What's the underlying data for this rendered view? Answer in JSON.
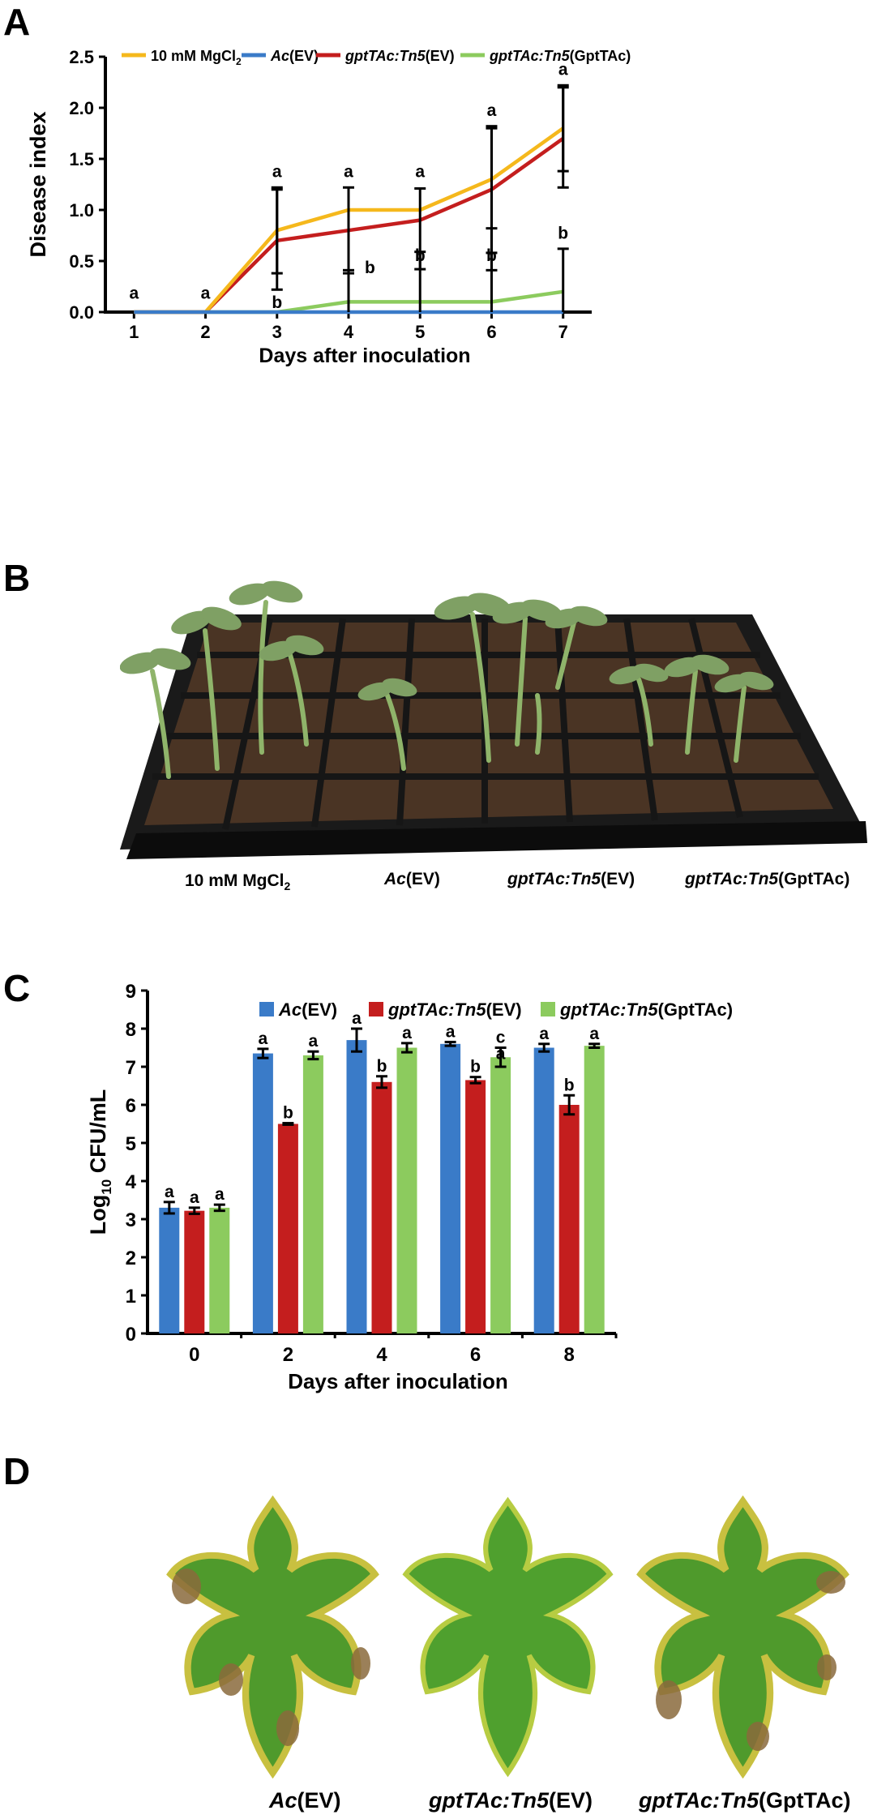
{
  "panels": {
    "a": "A",
    "b": "B",
    "c": "C",
    "d": "D"
  },
  "colors": {
    "mgcl2": "#F5B81C",
    "ac_ev": "#3A7BC8",
    "tn5_ev": "#C41E1E",
    "tn5_gpt": "#8CCB5E"
  },
  "chart_data": [
    {
      "type": "line",
      "xlabel": "Days after inoculation",
      "ylabel": "Disease index",
      "x": [
        1,
        2,
        3,
        4,
        5,
        6,
        7
      ],
      "xlim": [
        0.6,
        7.4
      ],
      "ylim": [
        0,
        2.5
      ],
      "yticks": [
        0.0,
        0.5,
        1.0,
        1.5,
        2.0,
        2.5
      ],
      "ytick_labels": [
        "0.0",
        "0.5",
        "1.0",
        "1.5",
        "2.0",
        "2.5"
      ],
      "legend_position": "top",
      "series": [
        {
          "name": "10 mM MgCl2",
          "label_main": "10 mM MgCl",
          "label_sub": "2",
          "label_italic": "",
          "label_plain": "",
          "color": "#F5B81C",
          "values": [
            0,
            0,
            0.8,
            1.0,
            1.0,
            1.3,
            1.8
          ]
        },
        {
          "name": "Ac(EV)",
          "label_main": "",
          "label_sub": "",
          "label_italic": "Ac",
          "label_plain": "(EV)",
          "color": "#3A7BC8",
          "values": [
            0,
            0,
            0,
            0,
            0,
            0,
            0
          ]
        },
        {
          "name": "gptTAc:Tn5(EV)",
          "label_main": "",
          "label_sub": "",
          "label_italic": "gptTAc:Tn5",
          "label_plain": "(EV)",
          "color": "#C41E1E",
          "values": [
            0,
            0,
            0.7,
            0.8,
            0.9,
            1.2,
            1.7
          ]
        },
        {
          "name": "gptTAc:Tn5(GptTAc)",
          "label_main": "",
          "label_sub": "",
          "label_italic": "gptTAc:Tn5",
          "label_plain": "(GptTAc)",
          "color": "#8CCB5E",
          "values": [
            0,
            0,
            0,
            0.1,
            0.1,
            0.1,
            0.2
          ]
        }
      ],
      "error_bars": [
        {
          "x": 3,
          "high": 1.22,
          "low": 0.22
        },
        {
          "x": 3,
          "high": 1.2,
          "low": 0.38
        },
        {
          "x": 4,
          "high": 1.22,
          "low": 0.38
        },
        {
          "x": 4,
          "high": 0.41,
          "low": 0.0
        },
        {
          "x": 5,
          "high": 1.21,
          "low": 0.42
        },
        {
          "x": 5,
          "high": 0.59,
          "low": 0.0
        },
        {
          "x": 6,
          "high": 1.82,
          "low": 0.41
        },
        {
          "x": 6,
          "high": 1.8,
          "low": 0.58
        },
        {
          "x": 6,
          "high": 0.82,
          "low": 0.0
        },
        {
          "x": 7,
          "high": 2.22,
          "low": 1.22
        },
        {
          "x": 7,
          "high": 2.2,
          "low": 1.38
        },
        {
          "x": 7,
          "high": 0.62,
          "low": 0.0
        }
      ],
      "annotations": [
        {
          "x": 1,
          "y": 0.13,
          "text": "a"
        },
        {
          "x": 2,
          "y": 0.13,
          "text": "a"
        },
        {
          "x": 3,
          "y": 1.32,
          "text": "a"
        },
        {
          "x": 3,
          "y": 0.04,
          "text": "b"
        },
        {
          "x": 4,
          "y": 1.32,
          "text": "a"
        },
        {
          "x": 4.3,
          "y": 0.38,
          "text": "b"
        },
        {
          "x": 5,
          "y": 1.32,
          "text": "a"
        },
        {
          "x": 5,
          "y": 0.5,
          "text": "b"
        },
        {
          "x": 6,
          "y": 1.92,
          "text": "a"
        },
        {
          "x": 6,
          "y": 0.5,
          "text": "b"
        },
        {
          "x": 7,
          "y": 2.32,
          "text": "a"
        },
        {
          "x": 7,
          "y": 0.72,
          "text": "b"
        }
      ]
    },
    {
      "type": "bar",
      "xlabel": "Days after inoculation",
      "ylabel_main": "Log",
      "ylabel_sub": "10",
      "ylabel_rest": " CFU/mL",
      "categories": [
        "0",
        "2",
        "4",
        "6",
        "8"
      ],
      "ylim": [
        0,
        9
      ],
      "yticks": [
        0,
        1,
        2,
        3,
        4,
        5,
        6,
        7,
        8,
        9
      ],
      "legend_position": "top",
      "series": [
        {
          "name": "Ac(EV)",
          "label_italic": "Ac",
          "label_plain": "(EV)",
          "color": "#3A7BC8",
          "values": [
            3.3,
            7.35,
            7.7,
            7.6,
            7.5
          ],
          "errors": [
            0.15,
            0.12,
            0.3,
            0.05,
            0.1
          ],
          "letters": [
            "a",
            "a",
            "a",
            "a",
            "a"
          ]
        },
        {
          "name": "gptTAc:Tn5(EV)",
          "label_italic": "gptTAc:Tn5",
          "label_plain": "(EV)",
          "color": "#C41E1E",
          "values": [
            3.22,
            5.5,
            6.6,
            6.65,
            6.0
          ],
          "errors": [
            0.08,
            0.02,
            0.15,
            0.08,
            0.25
          ],
          "letters": [
            "a",
            "b",
            "b",
            "b",
            "b"
          ]
        },
        {
          "name": "gptTAc:Tn5(GptTAc)",
          "label_italic": "gptTAc:Tn5",
          "label_plain": "(GptTAc)",
          "color": "#8CCB5E",
          "values": [
            3.3,
            7.3,
            7.5,
            7.25,
            7.55
          ],
          "errors": [
            0.08,
            0.1,
            0.12,
            0.25,
            0.05
          ],
          "letters": [
            "a",
            "a",
            "a",
            "c",
            "a"
          ]
        }
      ],
      "extra_letters": [
        {
          "category": "6",
          "series": 2,
          "text": "a"
        }
      ]
    }
  ],
  "photo_b": {
    "captions": [
      {
        "main": "10 mM MgCl",
        "sub": "2"
      },
      {
        "italic": "Ac",
        "plain": "(EV)"
      },
      {
        "italic": "gptTAc:Tn5",
        "plain": "(EV)"
      },
      {
        "italic": "gptTAc:Tn5",
        "plain": "(GptTAc)"
      }
    ]
  },
  "photo_d": {
    "captions": [
      {
        "italic": "Ac",
        "plain": "(EV)"
      },
      {
        "italic": "gptTAc:Tn5",
        "plain": "(EV)"
      },
      {
        "italic": "gptTAc:Tn5",
        "plain": "(GptTAc)"
      }
    ]
  }
}
